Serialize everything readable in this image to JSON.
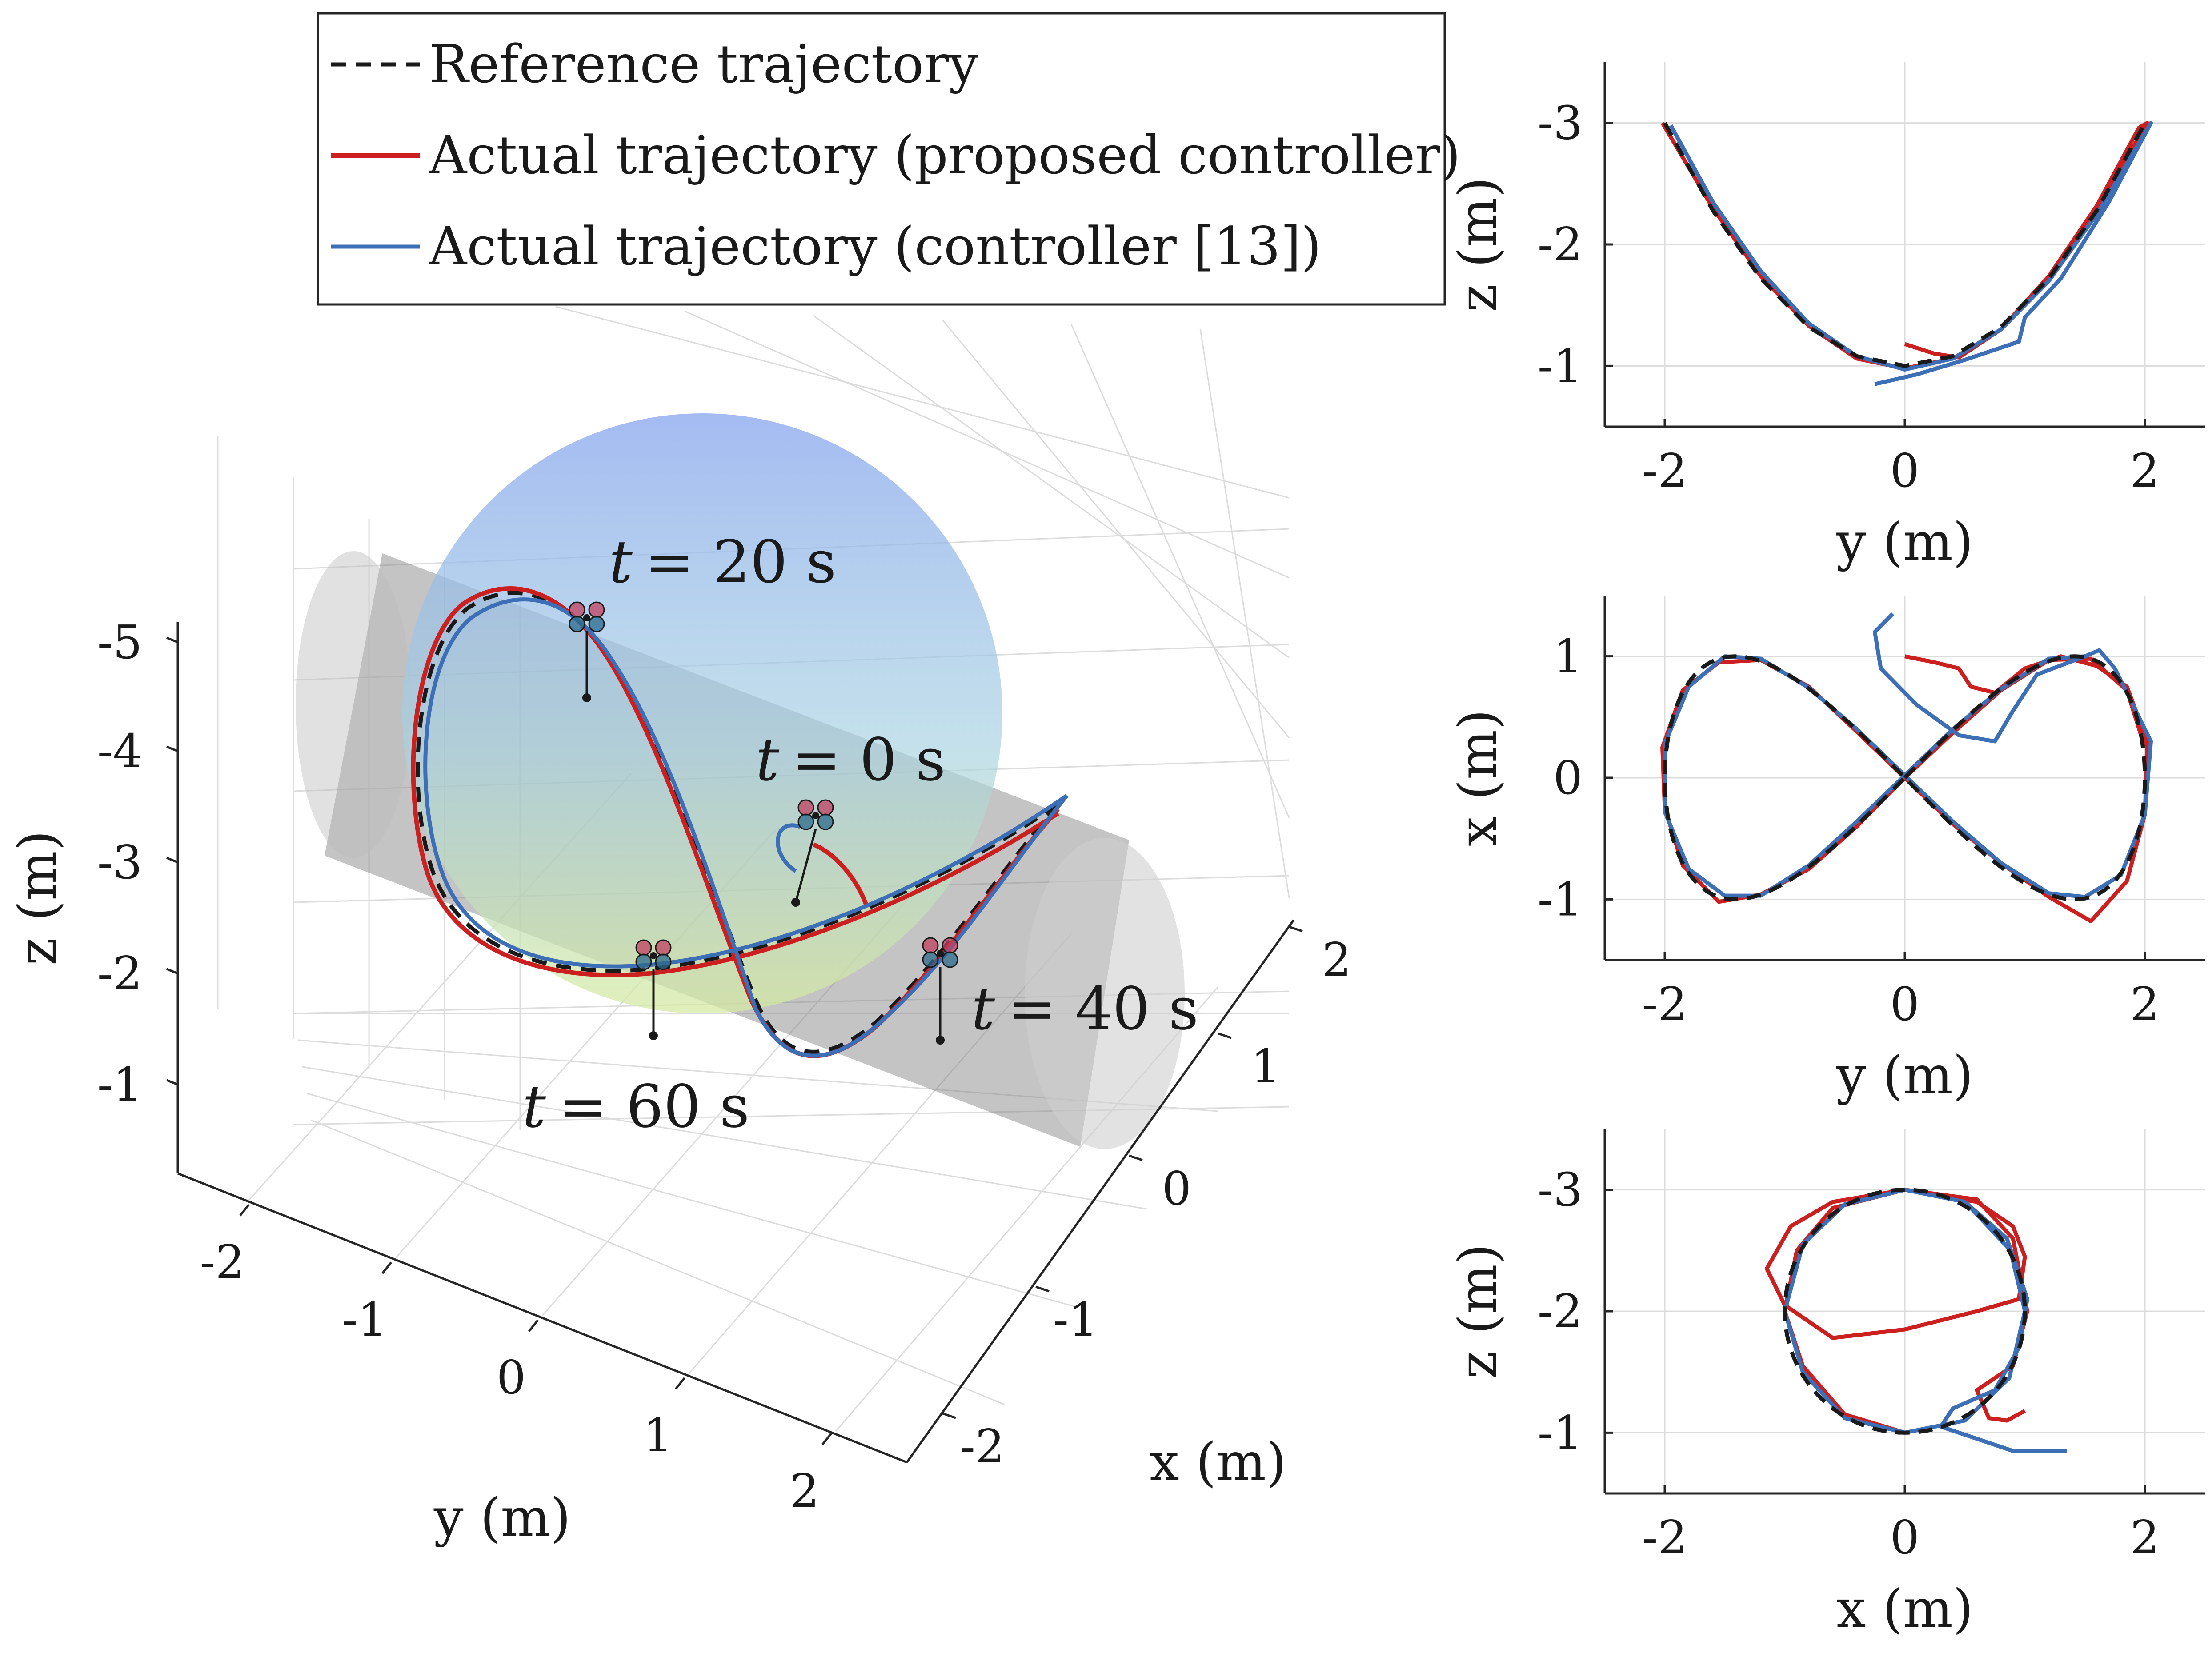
{
  "legend": {
    "items": [
      {
        "label": "Reference trajectory",
        "color": "#1a1a1a",
        "dash": true
      },
      {
        "label": "Actual trajectory (proposed controller)",
        "color": "#cc1f1f",
        "dash": false
      },
      {
        "label": "Actual trajectory (controller [13])",
        "color": "#3d6fb6",
        "dash": false
      }
    ]
  },
  "colors": {
    "reference": "#1a1a1a",
    "proposed": "#cc1f1f",
    "baseline": "#3d6fb6",
    "sphere_top": "#8fb0ea",
    "sphere_bottom": "#cfe6a8",
    "cylinder": "#9a9a9a"
  },
  "panel3d": {
    "xlabel": "x (m)",
    "ylabel": "y (m)",
    "zlabel": "z (m)",
    "xticks": [
      "-2",
      "-1",
      "0",
      "1",
      "2"
    ],
    "yticks": [
      "-2",
      "-1",
      "0",
      "1",
      "2"
    ],
    "zticks": [
      "-5",
      "-4",
      "-3",
      "-2",
      "-1"
    ],
    "annotations": [
      {
        "t": "t",
        "eq": "= 20 s"
      },
      {
        "t": "t",
        "eq": "= 0 s"
      },
      {
        "t": "t",
        "eq": "= 40 s"
      },
      {
        "t": "t",
        "eq": "= 60 s"
      }
    ]
  },
  "chart_data": [
    {
      "type": "line",
      "title": "",
      "xlabel": "y (m)",
      "ylabel": "z (m)",
      "xlim": [
        -2.5,
        2.5
      ],
      "ylim": [
        -0.5,
        -3.5
      ],
      "y_reversed": true,
      "xticks": [
        "-2",
        "0",
        "2"
      ],
      "yticks": [
        "-3",
        "-2",
        "-1"
      ],
      "grid": true,
      "series": [
        {
          "name": "Reference trajectory",
          "x": [
            -2.0,
            -1.6,
            -1.2,
            -0.8,
            -0.4,
            0.0,
            0.4,
            0.8,
            1.2,
            1.6,
            2.0
          ],
          "y": [
            -3.0,
            -2.28,
            -1.72,
            -1.32,
            -1.08,
            -1.0,
            -1.08,
            -1.32,
            -1.72,
            -2.28,
            -3.0
          ]
        },
        {
          "name": "Actual trajectory (proposed controller)",
          "x": [
            0.0,
            0.25,
            0.45,
            0.8,
            1.2,
            1.6,
            1.95,
            2.02,
            1.6,
            1.2,
            0.8,
            0.4,
            0.0,
            -0.4,
            -0.8,
            -1.2,
            -1.6,
            -2.02
          ],
          "y": [
            -1.18,
            -1.1,
            -1.07,
            -1.3,
            -1.74,
            -2.32,
            -2.96,
            -3.0,
            -2.3,
            -1.7,
            -1.3,
            -1.06,
            -0.98,
            -1.06,
            -1.33,
            -1.74,
            -2.3,
            -3.0
          ]
        },
        {
          "name": "Actual trajectory (controller [13])",
          "x": [
            -0.25,
            0.1,
            0.5,
            0.95,
            1.0,
            1.3,
            1.7,
            2.05,
            1.6,
            1.2,
            0.8,
            0.4,
            0.0,
            -0.4,
            -0.8,
            -1.2,
            -1.6,
            -1.95
          ],
          "y": [
            -0.85,
            -0.93,
            -1.05,
            -1.2,
            -1.4,
            -1.72,
            -2.35,
            -3.0,
            -2.25,
            -1.7,
            -1.3,
            -1.06,
            -0.97,
            -1.08,
            -1.35,
            -1.78,
            -2.35,
            -2.98
          ]
        }
      ]
    },
    {
      "type": "line",
      "title": "",
      "xlabel": "y (m)",
      "ylabel": "x (m)",
      "xlim": [
        -2.5,
        2.5
      ],
      "ylim": [
        -1.5,
        1.5
      ],
      "y_reversed": false,
      "xticks": [
        "-2",
        "0",
        "2"
      ],
      "yticks": [
        "1",
        "0",
        "-1"
      ],
      "grid": true,
      "series": [
        {
          "name": "Reference trajectory",
          "param": "lemniscate",
          "amp_y": 2.0,
          "amp_x": 1.0
        },
        {
          "name": "Actual trajectory (proposed controller)",
          "x": [
            0.0,
            0.25,
            0.45,
            0.55,
            0.75,
            1.0,
            1.3,
            1.6,
            1.85,
            2.02,
            2.0,
            1.85,
            1.55,
            1.2,
            0.8,
            0.4,
            0.0,
            -0.4,
            -0.8,
            -1.2,
            -1.55,
            -1.85,
            -2.02,
            -2.0,
            -1.85,
            -1.55,
            -1.2,
            -0.8,
            -0.4,
            0.0,
            0.4,
            0.8,
            1.2,
            1.55,
            1.85,
            2.0
          ],
          "y": [
            1.0,
            0.95,
            0.9,
            0.75,
            0.7,
            0.9,
            1.0,
            0.92,
            0.75,
            0.3,
            -0.3,
            -0.85,
            -1.18,
            -0.98,
            -0.7,
            -0.38,
            0.0,
            0.38,
            0.75,
            0.97,
            0.95,
            0.72,
            0.25,
            -0.25,
            -0.72,
            -1.02,
            -0.96,
            -0.75,
            -0.4,
            0.0,
            0.37,
            0.72,
            0.97,
            0.98,
            0.72,
            0.25
          ]
        },
        {
          "name": "Actual trajectory (controller [13])",
          "x": [
            -0.1,
            -0.25,
            -0.2,
            0.1,
            0.45,
            0.75,
            0.9,
            1.1,
            1.5,
            1.62,
            1.75,
            2.05,
            2.0,
            1.8,
            1.5,
            1.2,
            0.8,
            0.4,
            0.0,
            -0.4,
            -0.8,
            -1.2,
            -1.5,
            -1.8,
            -2.0,
            -2.0,
            -1.8,
            -1.5,
            -1.2,
            -0.8,
            -0.4,
            0.0,
            0.4,
            0.8,
            1.2,
            1.5
          ],
          "y": [
            1.35,
            1.2,
            0.9,
            0.6,
            0.35,
            0.3,
            0.55,
            0.85,
            1.0,
            1.05,
            0.9,
            0.3,
            -0.3,
            -0.8,
            -0.98,
            -0.95,
            -0.7,
            -0.36,
            0.02,
            0.4,
            0.74,
            0.98,
            1.0,
            0.75,
            0.28,
            -0.28,
            -0.75,
            -0.97,
            -0.97,
            -0.72,
            -0.36,
            0.02,
            0.4,
            0.73,
            0.98,
            1.0
          ]
        }
      ]
    },
    {
      "type": "line",
      "title": "",
      "xlabel": "x (m)",
      "ylabel": "z (m)",
      "xlim": [
        -2.5,
        2.5
      ],
      "ylim": [
        -0.5,
        -3.5
      ],
      "y_reversed": true,
      "xticks": [
        "-2",
        "0",
        "2"
      ],
      "yticks": [
        "-3",
        "-2",
        "-1"
      ],
      "grid": true,
      "series": [
        {
          "name": "Reference trajectory",
          "param": "circle",
          "cx": 0,
          "cy": -2,
          "r": 1.0
        },
        {
          "name": "Actual trajectory (proposed controller)",
          "x": [
            1.0,
            0.85,
            0.7,
            0.6,
            0.9,
            1.02,
            0.9,
            0.6,
            0.0,
            -0.6,
            -0.95,
            -1.15,
            -1.0,
            -0.6,
            0.0,
            0.6,
            0.95,
            1.0,
            0.9,
            0.6,
            0.0,
            -0.6,
            -0.9,
            -1.0,
            -0.85,
            -0.5,
            0.0
          ],
          "y": [
            -1.18,
            -1.1,
            -1.12,
            -1.35,
            -1.55,
            -2.0,
            -2.6,
            -2.92,
            -3.0,
            -2.9,
            -2.7,
            -2.35,
            -2.05,
            -1.78,
            -1.85,
            -2.0,
            -2.1,
            -2.45,
            -2.7,
            -2.9,
            -3.0,
            -2.85,
            -2.5,
            -2.0,
            -1.55,
            -1.15,
            -1.0
          ]
        },
        {
          "name": "Actual trajectory (controller [13])",
          "x": [
            1.35,
            0.9,
            0.6,
            0.3,
            0.4,
            0.75,
            0.95,
            1.02,
            0.85,
            0.5,
            0.0,
            -0.5,
            -0.85,
            -1.0,
            -0.85,
            -0.5,
            0.0,
            0.5,
            0.87,
            1.0,
            0.88,
            0.55
          ],
          "y": [
            -0.85,
            -0.85,
            -0.95,
            -1.05,
            -1.2,
            -1.35,
            -1.7,
            -2.1,
            -2.6,
            -2.9,
            -3.0,
            -2.88,
            -2.55,
            -2.0,
            -1.5,
            -1.12,
            -1.0,
            -1.1,
            -1.45,
            -2.0,
            -2.5,
            -2.85
          ]
        }
      ]
    }
  ]
}
